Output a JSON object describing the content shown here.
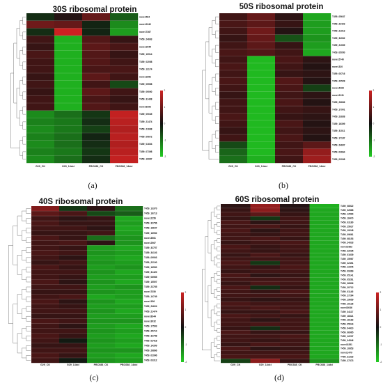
{
  "chart_data": [
    {
      "type": "heatmap",
      "title": "30S ribosomal protein",
      "caption": "(a)",
      "columns": [
        "G29_CK",
        "G29_14dci",
        "PBC688_CK",
        "PBC688_14dci"
      ],
      "rows": [
        "novel.564",
        "novel.2342",
        "novel.7367",
        "T459_24663",
        "novel.1545",
        "T459_10914",
        "T459_02058",
        "T459_13174",
        "novel.1652",
        "T459_05558",
        "T459_09090",
        "T459_31408",
        "novel.6393",
        "T459_09045",
        "T459_21474",
        "T459_21668",
        "T459_00672",
        "T459_01604",
        "T459_07398",
        "T459_19987"
      ],
      "values": [
        [
          -0.3,
          0.2,
          0.9,
          -0.8
        ],
        [
          1,
          0.9,
          -0.2,
          -1.3
        ],
        [
          -0.3,
          2,
          -0.2,
          -1.5
        ],
        [
          0.5,
          -1.7,
          0.7,
          0.4
        ],
        [
          0.4,
          -1.7,
          0.8,
          0.6
        ],
        [
          0.6,
          -1.7,
          0.7,
          0.4
        ],
        [
          0.5,
          -1.7,
          0.7,
          0.5
        ],
        [
          0.5,
          -1.7,
          0.6,
          0.6
        ],
        [
          0.4,
          -1.7,
          0.8,
          0.5
        ],
        [
          0.5,
          -1.7,
          0.5,
          -0.6
        ],
        [
          0.4,
          -1.7,
          0.8,
          0.5
        ],
        [
          0.5,
          -1.7,
          0.6,
          0.4
        ],
        [
          0.5,
          -1.7,
          0.7,
          0.5
        ],
        [
          -1.3,
          -1.0,
          -0.4,
          1.9
        ],
        [
          -1.2,
          -1.1,
          -0.3,
          1.8
        ],
        [
          -1.3,
          -1.1,
          -0.5,
          1.7
        ],
        [
          -1.2,
          -1.0,
          -0.2,
          1.8
        ],
        [
          -1.3,
          -1.0,
          -0.3,
          1.7
        ],
        [
          -1.2,
          -1.1,
          -0.4,
          1.8
        ],
        [
          -1.3,
          -1.0,
          -0.3,
          1.9
        ]
      ],
      "colorbar": {
        "min": -2,
        "max": 2,
        "ticks": [
          2,
          1,
          0,
          -1,
          -2
        ],
        "colors": [
          "#22cc22",
          "#111111",
          "#cc2222"
        ]
      }
    },
    {
      "type": "heatmap",
      "title": "50S ribosomal protein",
      "caption": "(b)",
      "columns": [
        "G29_CK",
        "G29_14dci",
        "PBC688_CK",
        "PBC688_14dci"
      ],
      "rows": [
        "T459_05647",
        "T459_22423",
        "T459_21913",
        "T459_34062",
        "T459_21069",
        "T459_05050",
        "novel.5740",
        "novel.320",
        "T459_00716",
        "T459_20528",
        "novel.4463",
        "novel.2131",
        "T459_26836",
        "T459_17901",
        "T459_23838",
        "T459_16399",
        "T459_31011",
        "T459_17187",
        "T459_24697",
        "T459_03664",
        "T459_02008"
      ],
      "values": [
        [
          0.5,
          0.9,
          0.3,
          -1.6
        ],
        [
          0.6,
          0.8,
          0.4,
          -1.5
        ],
        [
          0.5,
          1.0,
          0.2,
          -1.5
        ],
        [
          0.4,
          0.9,
          -0.7,
          -1.4
        ],
        [
          0.5,
          0.8,
          0.4,
          -1.5
        ],
        [
          0.6,
          0.7,
          0.5,
          -1.6
        ],
        [
          0.5,
          -1.8,
          0.6,
          0.3
        ],
        [
          0.6,
          -1.8,
          0.5,
          0.2
        ],
        [
          0.5,
          -1.8,
          0.4,
          0.3
        ],
        [
          0.6,
          -1.8,
          0.7,
          0.2
        ],
        [
          0.5,
          -1.8,
          0.6,
          -0.5
        ],
        [
          0.4,
          -1.8,
          0.5,
          0.3
        ],
        [
          0.5,
          -1.8,
          0.6,
          0.2
        ],
        [
          0.5,
          -1.8,
          0.5,
          0.4
        ],
        [
          0.6,
          -1.8,
          0.4,
          0.3
        ],
        [
          0.5,
          -1.8,
          0.6,
          0.2
        ],
        [
          0.4,
          -1.8,
          0.5,
          0.3
        ],
        [
          0.5,
          -1.8,
          0.6,
          0.2
        ],
        [
          -0.6,
          -1.8,
          0.5,
          0.8
        ],
        [
          -0.9,
          -1.8,
          0.6,
          1.4
        ],
        [
          -1.0,
          -1.7,
          0.5,
          1.5
        ]
      ],
      "colorbar": {
        "min": -2,
        "max": 2,
        "ticks": [
          2,
          1,
          0,
          -1,
          -2
        ],
        "colors": [
          "#22cc22",
          "#111111",
          "#cc2222"
        ]
      }
    },
    {
      "type": "heatmap",
      "title": "40S ribosomal protein",
      "caption": "(c)",
      "columns": [
        "G29_CK",
        "G29_14dci",
        "PBC688_CK",
        "PBC688_14dci"
      ],
      "rows": [
        "T459_13370",
        "T459_16713",
        "novel.2256",
        "T459_32756",
        "T459_16647",
        "T459_16952",
        "novel.3561",
        "novel.2967",
        "T459_32757",
        "T459_34103",
        "T459_09903",
        "T459_22100",
        "T459_16590",
        "T459_31420",
        "T459_06965",
        "T459_15507",
        "T459_22765",
        "novel.7350",
        "T459_14749",
        "novel.156",
        "T459_24624",
        "T459_21474",
        "novel.8344",
        "novel.3032",
        "T459_17593",
        "T459_25710",
        "T459_32758",
        "T459_02418",
        "T459_14399",
        "T459_26866",
        "T459_02996",
        "T459_03312"
      ],
      "values": [
        [
          1.2,
          -0.4,
          0.3,
          -1.0
        ],
        [
          0.8,
          0.6,
          -0.6,
          -0.8
        ],
        [
          0.5,
          0.3,
          0.4,
          -1.6
        ],
        [
          0.6,
          0.4,
          0.4,
          -1.5
        ],
        [
          0.5,
          0.5,
          0.3,
          -1.6
        ],
        [
          0.4,
          0.4,
          0.5,
          -1.5
        ],
        [
          0.6,
          0.4,
          -1.0,
          -1.4
        ],
        [
          0.5,
          0.6,
          0.3,
          -1.4
        ],
        [
          0.5,
          0.4,
          -1.5,
          -1.6
        ],
        [
          0.6,
          0.5,
          -1.4,
          -1.5
        ],
        [
          0.5,
          0.3,
          -1.5,
          -1.6
        ],
        [
          0.4,
          0.5,
          -1.4,
          -1.5
        ],
        [
          0.6,
          0.4,
          -1.5,
          -1.4
        ],
        [
          0.5,
          0.5,
          -1.4,
          -1.6
        ],
        [
          0.5,
          0.4,
          -1.5,
          -1.5
        ],
        [
          0.6,
          0.3,
          -1.4,
          -1.6
        ],
        [
          0.5,
          0.5,
          -1.5,
          -1.4
        ],
        [
          0.4,
          0.4,
          -1.4,
          -1.5
        ],
        [
          0.5,
          0.6,
          -1.6,
          -1.5
        ],
        [
          0.6,
          0.3,
          -1.4,
          -1.6
        ],
        [
          0.5,
          0.4,
          -1.5,
          -1.5
        ],
        [
          0.5,
          0.5,
          -1.4,
          -1.6
        ],
        [
          0.4,
          0.4,
          -1.5,
          -1.5
        ],
        [
          0.6,
          0.5,
          -1.4,
          -1.4
        ],
        [
          0.5,
          0.3,
          -1.5,
          -1.6
        ],
        [
          0.5,
          0.5,
          -1.4,
          -1.5
        ],
        [
          0.6,
          0.4,
          -1.5,
          -1.6
        ],
        [
          0.5,
          -0.1,
          -1.4,
          -1.5
        ],
        [
          0.4,
          0.4,
          -1.5,
          -1.6
        ],
        [
          0.5,
          0.5,
          -1.4,
          -1.4
        ],
        [
          0.6,
          0.4,
          -1.5,
          -1.6
        ],
        [
          0.5,
          -0.1,
          -1.4,
          -1.5
        ]
      ],
      "colorbar": {
        "min": -2,
        "max": 2,
        "ticks": [
          2,
          1,
          0,
          -1,
          -2
        ],
        "colors": [
          "#22cc22",
          "#111111",
          "#cc2222"
        ]
      }
    },
    {
      "type": "heatmap",
      "title": "60S ribosomal protein",
      "caption": "(d)",
      "columns": [
        "G29_CK",
        "G29_14dci",
        "PBC688_CK",
        "PBC688_14dci"
      ],
      "rows": [
        "T459_08522",
        "T459_32868",
        "T459_12590",
        "T459_18470",
        "T459_03180",
        "T459_25627",
        "T459_19248",
        "T459_09661",
        "T459_08153",
        "T459_24333",
        "novel.5363",
        "T459_22035",
        "T459_01639",
        "T459_15967",
        "T459_22451",
        "T459_13476",
        "T459_09369",
        "T459_05141",
        "T459_05261",
        "T459_06806",
        "T459_20712",
        "T459_01145",
        "T459_27264",
        "T459_19659",
        "T459_10126",
        "novel.8046",
        "T459_34117",
        "T459_18321",
        "T459_16182",
        "T459_05044",
        "T459_04410",
        "T459_06965",
        "T459_12237",
        "T459_04546",
        "novel.8351",
        "T459_10853",
        "novel.2479",
        "T459_31316",
        "T459_27373"
      ],
      "values": [
        [
          0.3,
          1.4,
          0.2,
          -1.7
        ],
        [
          0.4,
          1.3,
          0.3,
          -1.6
        ],
        [
          0.5,
          0.8,
          0.4,
          -1.6
        ],
        [
          0.4,
          -0.4,
          0.5,
          -1.6
        ],
        [
          0.6,
          0.3,
          0.5,
          -1.6
        ],
        [
          0.5,
          0.6,
          0.4,
          -1.6
        ],
        [
          0.6,
          0.3,
          0.5,
          -1.6
        ],
        [
          0.5,
          0.4,
          0.5,
          -1.6
        ],
        [
          0.5,
          0.6,
          0.4,
          -1.6
        ],
        [
          0.4,
          0.5,
          0.6,
          -1.6
        ],
        [
          0.6,
          0.4,
          0.5,
          -1.6
        ],
        [
          0.5,
          0.4,
          0.5,
          -1.6
        ],
        [
          0.4,
          0.6,
          0.4,
          -1.6
        ],
        [
          0.5,
          0.5,
          0.5,
          -1.6
        ],
        [
          0.6,
          -0.4,
          0.5,
          -1.6
        ],
        [
          0.5,
          0.4,
          0.6,
          -1.6
        ],
        [
          0.4,
          0.5,
          0.5,
          -1.6
        ],
        [
          0.6,
          0.3,
          0.4,
          -1.6
        ],
        [
          0.5,
          0.5,
          0.5,
          -1.6
        ],
        [
          0.4,
          0.6,
          0.5,
          -1.6
        ],
        [
          0.6,
          -0.3,
          0.4,
          -1.6
        ],
        [
          0.5,
          0.4,
          0.6,
          -1.6
        ],
        [
          0.5,
          0.5,
          0.5,
          -1.6
        ],
        [
          0.4,
          0.3,
          0.4,
          -1.6
        ],
        [
          0.6,
          0.5,
          0.5,
          -1.6
        ],
        [
          0.5,
          0.6,
          0.5,
          -1.6
        ],
        [
          0.4,
          0.4,
          0.6,
          -1.6
        ],
        [
          0.6,
          0.5,
          0.4,
          -1.6
        ],
        [
          0.5,
          0.3,
          0.5,
          -1.6
        ],
        [
          0.5,
          0.6,
          0.5,
          -1.6
        ],
        [
          0.4,
          -0.3,
          0.5,
          -1.6
        ],
        [
          0.6,
          0.4,
          0.4,
          -1.6
        ],
        [
          0.5,
          0.5,
          0.6,
          -1.6
        ],
        [
          0.5,
          0.4,
          0.5,
          -1.6
        ],
        [
          0.4,
          0.6,
          0.5,
          -1.6
        ],
        [
          0.6,
          0.3,
          0.4,
          -1.6
        ],
        [
          0.5,
          0.5,
          0.5,
          -1.6
        ],
        [
          0.6,
          0.6,
          0.6,
          -1.6
        ],
        [
          -0.5,
          1.3,
          0.4,
          -1.4
        ]
      ],
      "colorbar": {
        "min": -2,
        "max": 2,
        "ticks": [
          2,
          1,
          0,
          -1,
          -2
        ],
        "colors": [
          "#22cc22",
          "#111111",
          "#cc2222"
        ]
      }
    }
  ]
}
